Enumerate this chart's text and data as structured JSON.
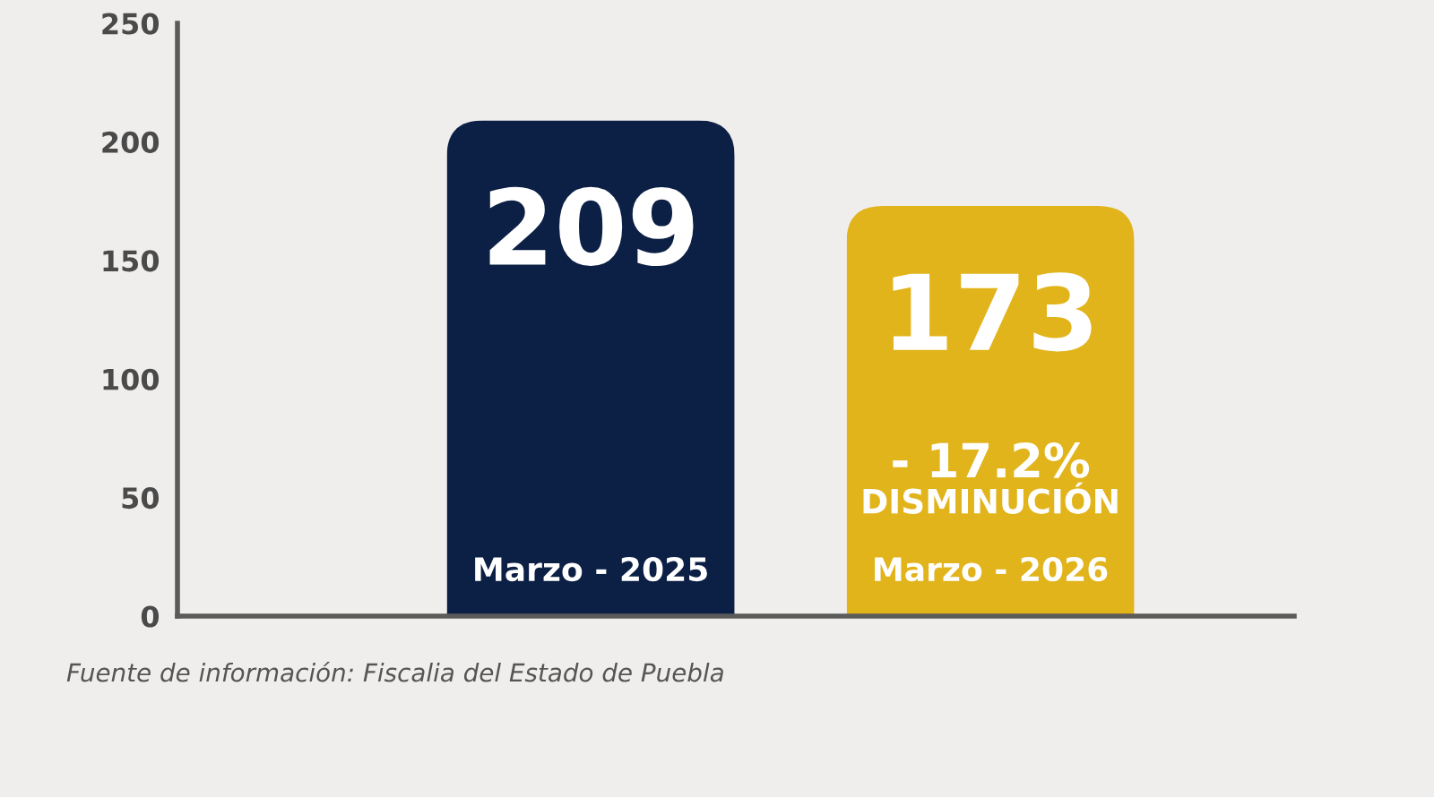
{
  "chart_data": {
    "type": "bar",
    "categories": [
      "Marzo - 2025",
      "Marzo - 2026"
    ],
    "values": [
      209,
      173
    ],
    "colors": [
      "#0c1f45",
      "#e2b41c"
    ],
    "ylim": [
      0,
      250
    ],
    "yticks": [
      0,
      50,
      100,
      150,
      200,
      250
    ],
    "data_labels": true,
    "annotations": [
      "- 17.2%",
      "DISMINUCIÓN",
      "Fuente de información: Fiscalia del Estado de Puebla"
    ]
  }
}
